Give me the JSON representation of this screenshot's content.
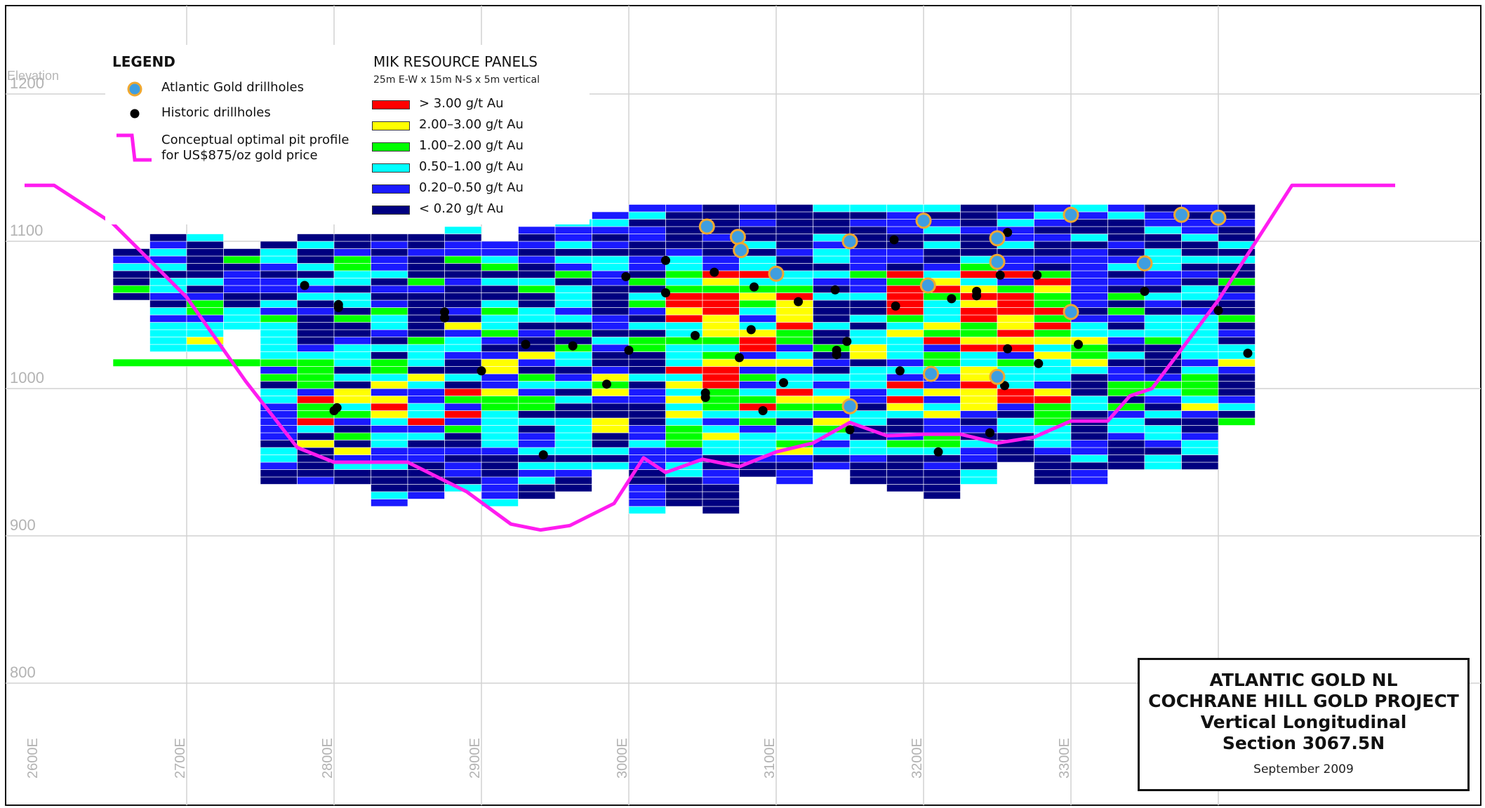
{
  "axes": {
    "elevation_title": "Elevation",
    "y_ticks": [
      {
        "value": 1200,
        "label": "1200"
      },
      {
        "value": 1100,
        "label": "1100"
      },
      {
        "value": 1000,
        "label": "1000"
      },
      {
        "value": 900,
        "label": "900"
      },
      {
        "value": 800,
        "label": "800"
      }
    ],
    "x_ticks": [
      {
        "value": 2600,
        "label": "2600E"
      },
      {
        "value": 2700,
        "label": "2700E"
      },
      {
        "value": 2800,
        "label": "2800E"
      },
      {
        "value": 2900,
        "label": "2900E"
      },
      {
        "value": 3000,
        "label": "3000E"
      },
      {
        "value": 3100,
        "label": "3100E"
      },
      {
        "value": 3200,
        "label": "3200E"
      },
      {
        "value": 3300,
        "label": "3300E"
      }
    ]
  },
  "legend": {
    "title": "LEGEND",
    "atlantic": "Atlantic Gold drillholes",
    "historic": "Historic drillholes",
    "pit_line1": "Conceptual optimal pit profile",
    "pit_line2": "for US$875/oz gold price"
  },
  "panels_legend": {
    "title": "MIK RESOURCE PANELS",
    "subtitle": "25m E-W x 15m N-S x 5m vertical",
    "grades": [
      {
        "label": "> 3.00 g/t Au",
        "color": "#ff0000"
      },
      {
        "label": "2.00–3.00 g/t Au",
        "color": "#ffff00"
      },
      {
        "label": "1.00–2.00 g/t Au",
        "color": "#00ff00"
      },
      {
        "label": "0.50–1.00 g/t Au",
        "color": "#00ffff"
      },
      {
        "label": "0.20–0.50 g/t Au",
        "color": "#1a1aff"
      },
      {
        "label": "< 0.20 g/t Au",
        "color": "#000080"
      }
    ]
  },
  "colors": {
    "pit": "#ff1cf0",
    "atlantic_fill": "#3f9ee0",
    "atlantic_ring": "#f0a830",
    "historic": "#000000",
    "grid": "#d2d2d2"
  },
  "title_block": {
    "line1": "ATLANTIC GOLD NL",
    "line2": "COCHRANE HILL GOLD PROJECT",
    "line3": "Vertical Longitudinal",
    "line4": "Section 3067.5N",
    "date": "September 2009"
  },
  "sections": {
    "panel_columns": [
      {
        "x": 2650,
        "bottom": 1060,
        "top": 1095
      },
      {
        "x": 2675,
        "bottom": 1025,
        "top": 1105
      },
      {
        "x": 2700,
        "bottom": 1025,
        "top": 1105
      },
      {
        "x": 2725,
        "bottom": 1040,
        "top": 1095
      },
      {
        "x": 2750,
        "bottom": 935,
        "top": 1100
      },
      {
        "x": 2775,
        "bottom": 935,
        "top": 1105
      },
      {
        "x": 2800,
        "bottom": 935,
        "top": 1105
      },
      {
        "x": 2825,
        "bottom": 920,
        "top": 1105
      },
      {
        "x": 2850,
        "bottom": 925,
        "top": 1105
      },
      {
        "x": 2875,
        "bottom": 930,
        "top": 1110
      },
      {
        "x": 2900,
        "bottom": 920,
        "top": 1100
      },
      {
        "x": 2925,
        "bottom": 925,
        "top": 1110
      },
      {
        "x": 2950,
        "bottom": 930,
        "top": 1115
      },
      {
        "x": 2975,
        "bottom": 945,
        "top": 1120
      },
      {
        "x": 3000,
        "bottom": 915,
        "top": 1125
      },
      {
        "x": 3025,
        "bottom": 920,
        "top": 1125
      },
      {
        "x": 3050,
        "bottom": 915,
        "top": 1125
      },
      {
        "x": 3075,
        "bottom": 940,
        "top": 1125
      },
      {
        "x": 3100,
        "bottom": 935,
        "top": 1125
      },
      {
        "x": 3125,
        "bottom": 945,
        "top": 1125
      },
      {
        "x": 3150,
        "bottom": 935,
        "top": 1125
      },
      {
        "x": 3175,
        "bottom": 930,
        "top": 1125
      },
      {
        "x": 3200,
        "bottom": 925,
        "top": 1125
      },
      {
        "x": 3225,
        "bottom": 935,
        "top": 1125
      },
      {
        "x": 3250,
        "bottom": 950,
        "top": 1125
      },
      {
        "x": 3275,
        "bottom": 935,
        "top": 1125
      },
      {
        "x": 3300,
        "bottom": 935,
        "top": 1125
      },
      {
        "x": 3325,
        "bottom": 945,
        "top": 1125
      },
      {
        "x": 3350,
        "bottom": 945,
        "top": 1125
      },
      {
        "x": 3375,
        "bottom": 945,
        "top": 1125
      },
      {
        "x": 3400,
        "bottom": 975,
        "top": 1125
      }
    ],
    "high_grade_zones": [
      {
        "x0": 2775,
        "x1": 2900,
        "y0": 975,
        "y1": 1000,
        "grade": "mixed"
      },
      {
        "x0": 3025,
        "x1": 3125,
        "y0": 985,
        "y1": 1080,
        "grade": "mixed"
      },
      {
        "x0": 3175,
        "x1": 3300,
        "y0": 985,
        "y1": 1080,
        "grade": "mixed"
      }
    ],
    "pit_profile": [
      {
        "x": 2590,
        "y": 1138
      },
      {
        "x": 2610,
        "y": 1138
      },
      {
        "x": 2650,
        "y": 1112
      },
      {
        "x": 2700,
        "y": 1062
      },
      {
        "x": 2740,
        "y": 1005
      },
      {
        "x": 2775,
        "y": 960
      },
      {
        "x": 2800,
        "y": 950
      },
      {
        "x": 2850,
        "y": 950
      },
      {
        "x": 2890,
        "y": 930
      },
      {
        "x": 2920,
        "y": 908
      },
      {
        "x": 2940,
        "y": 904
      },
      {
        "x": 2960,
        "y": 907
      },
      {
        "x": 2990,
        "y": 922
      },
      {
        "x": 3010,
        "y": 953
      },
      {
        "x": 3025,
        "y": 943
      },
      {
        "x": 3050,
        "y": 952
      },
      {
        "x": 3075,
        "y": 947
      },
      {
        "x": 3100,
        "y": 957
      },
      {
        "x": 3125,
        "y": 963
      },
      {
        "x": 3150,
        "y": 977
      },
      {
        "x": 3175,
        "y": 968
      },
      {
        "x": 3200,
        "y": 969
      },
      {
        "x": 3225,
        "y": 969
      },
      {
        "x": 3250,
        "y": 963
      },
      {
        "x": 3275,
        "y": 967
      },
      {
        "x": 3300,
        "y": 978
      },
      {
        "x": 3325,
        "y": 978
      },
      {
        "x": 3340,
        "y": 995
      },
      {
        "x": 3355,
        "y": 1000
      },
      {
        "x": 3400,
        "y": 1060
      },
      {
        "x": 3450,
        "y": 1138
      },
      {
        "x": 3520,
        "y": 1138
      }
    ],
    "atlantic_holes": [
      {
        "x": 3053,
        "y": 1110
      },
      {
        "x": 3074,
        "y": 1103
      },
      {
        "x": 3076,
        "y": 1094
      },
      {
        "x": 3100,
        "y": 1078
      },
      {
        "x": 3150,
        "y": 1100
      },
      {
        "x": 3200,
        "y": 1114
      },
      {
        "x": 3203,
        "y": 1070
      },
      {
        "x": 3205,
        "y": 1010
      },
      {
        "x": 3150,
        "y": 988
      },
      {
        "x": 3250,
        "y": 1102
      },
      {
        "x": 3250,
        "y": 1086
      },
      {
        "x": 3250,
        "y": 1008
      },
      {
        "x": 3300,
        "y": 1118
      },
      {
        "x": 3300,
        "y": 1052
      },
      {
        "x": 3350,
        "y": 1085
      },
      {
        "x": 3375,
        "y": 1118
      },
      {
        "x": 3400,
        "y": 1116
      }
    ],
    "historic_holes": [
      {
        "x": 2780,
        "y": 1070
      },
      {
        "x": 2803,
        "y": 1057
      },
      {
        "x": 2803,
        "y": 1055
      },
      {
        "x": 2875,
        "y": 1052
      },
      {
        "x": 2875,
        "y": 1048
      },
      {
        "x": 2802,
        "y": 987
      },
      {
        "x": 2800,
        "y": 985
      },
      {
        "x": 2900,
        "y": 1012
      },
      {
        "x": 2930,
        "y": 1030
      },
      {
        "x": 2942,
        "y": 955
      },
      {
        "x": 2962,
        "y": 1029
      },
      {
        "x": 2985,
        "y": 1003
      },
      {
        "x": 2998,
        "y": 1076
      },
      {
        "x": 3000,
        "y": 1026
      },
      {
        "x": 3025,
        "y": 1087
      },
      {
        "x": 3025,
        "y": 1065
      },
      {
        "x": 3045,
        "y": 1036
      },
      {
        "x": 3052,
        "y": 997
      },
      {
        "x": 3052,
        "y": 994
      },
      {
        "x": 3058,
        "y": 1079
      },
      {
        "x": 3075,
        "y": 1021
      },
      {
        "x": 3083,
        "y": 1040
      },
      {
        "x": 3085,
        "y": 1069
      },
      {
        "x": 3091,
        "y": 985
      },
      {
        "x": 3105,
        "y": 1004
      },
      {
        "x": 3115,
        "y": 1059
      },
      {
        "x": 3140,
        "y": 1067
      },
      {
        "x": 3141,
        "y": 1026
      },
      {
        "x": 3141,
        "y": 1023
      },
      {
        "x": 3148,
        "y": 1032
      },
      {
        "x": 3150,
        "y": 972
      },
      {
        "x": 3180,
        "y": 1101
      },
      {
        "x": 3181,
        "y": 1056
      },
      {
        "x": 3184,
        "y": 1012
      },
      {
        "x": 3219,
        "y": 1061
      },
      {
        "x": 3236,
        "y": 1066
      },
      {
        "x": 3236,
        "y": 1063
      },
      {
        "x": 3245,
        "y": 970
      },
      {
        "x": 3252,
        "y": 1077
      },
      {
        "x": 3255,
        "y": 1002
      },
      {
        "x": 3257,
        "y": 1027
      },
      {
        "x": 3257,
        "y": 1106
      },
      {
        "x": 3277,
        "y": 1077
      },
      {
        "x": 3278,
        "y": 1017
      },
      {
        "x": 3305,
        "y": 1030
      },
      {
        "x": 3350,
        "y": 1066
      },
      {
        "x": 3400,
        "y": 1053
      },
      {
        "x": 3420,
        "y": 1024
      },
      {
        "x": 3210,
        "y": 957
      }
    ]
  }
}
